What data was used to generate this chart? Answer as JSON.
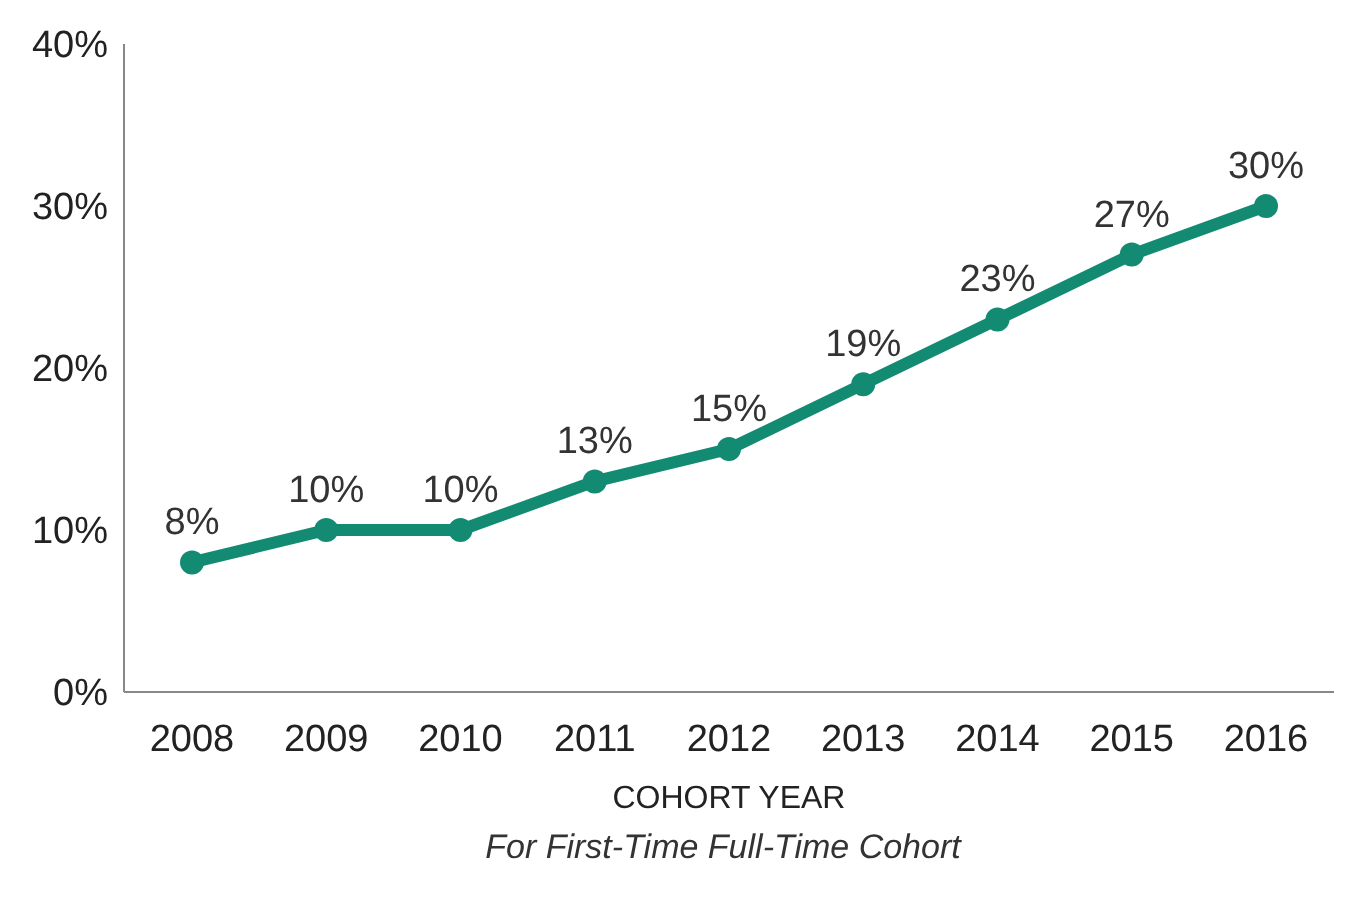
{
  "chart_data": {
    "type": "line",
    "xlabel": "COHORT YEAR",
    "annotations": [
      "For First-Time Full-Time Cohort"
    ],
    "categories": [
      "2008",
      "2009",
      "2010",
      "2011",
      "2012",
      "2013",
      "2014",
      "2015",
      "2016"
    ],
    "series": [
      {
        "color": "#138a72",
        "values": [
          8,
          10,
          10,
          13,
          15,
          19,
          23,
          27,
          30
        ],
        "value_labels": [
          "8%",
          "10%",
          "10%",
          "13%",
          "15%",
          "19%",
          "23%",
          "27%",
          "30%"
        ]
      }
    ],
    "ylim": [
      0,
      40
    ],
    "yticks": [
      {
        "value": 0,
        "label": "0%"
      },
      {
        "value": 10,
        "label": "10%"
      },
      {
        "value": 20,
        "label": "20%"
      },
      {
        "value": 30,
        "label": "30%"
      },
      {
        "value": 40,
        "label": "40%"
      }
    ],
    "grid": false,
    "legend": false,
    "marker": "circle",
    "line_style": "solid"
  }
}
